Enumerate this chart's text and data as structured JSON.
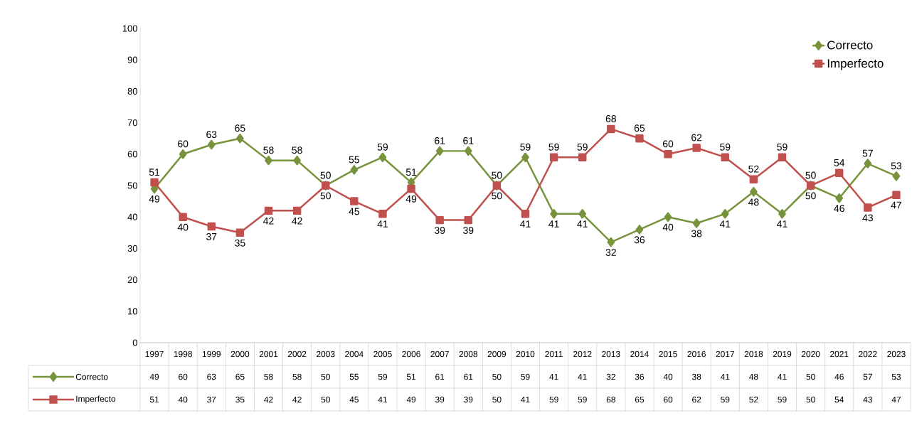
{
  "chart_data": {
    "type": "line",
    "categories": [
      "1997",
      "1998",
      "1999",
      "2000",
      "2001",
      "2002",
      "2003",
      "2004",
      "2005",
      "2006",
      "2007",
      "2008",
      "2009",
      "2010",
      "2011",
      "2012",
      "2013",
      "2014",
      "2015",
      "2016",
      "2017",
      "2018",
      "2019",
      "2020",
      "2021",
      "2022",
      "2023"
    ],
    "series": [
      {
        "name": "Correcto",
        "color": "#77933c",
        "marker": "diamond",
        "values": [
          49,
          60,
          63,
          65,
          58,
          58,
          50,
          55,
          59,
          51,
          61,
          61,
          50,
          59,
          41,
          41,
          32,
          36,
          40,
          38,
          41,
          48,
          41,
          50,
          46,
          57,
          53
        ],
        "value_labels": [
          "49",
          "60",
          "63",
          "65",
          "58",
          "58",
          "50",
          "55",
          "59",
          "51",
          "61",
          "61",
          "50",
          "59",
          "41",
          "41",
          "32",
          "36",
          "40",
          "38",
          "41",
          "48",
          "41",
          "50",
          "46",
          "57",
          "53"
        ]
      },
      {
        "name": "Imperfecto",
        "color": "#c0504d",
        "marker": "square",
        "values": [
          51,
          40,
          37,
          35,
          42,
          42,
          50,
          45,
          41,
          49,
          39,
          39,
          50,
          41,
          59,
          59,
          68,
          65,
          60,
          62,
          59,
          52,
          59,
          50,
          54,
          43,
          47
        ],
        "value_labels": [
          "51",
          "40",
          "37",
          "35",
          "42",
          "42",
          "50",
          "45",
          "41",
          "49",
          "39",
          "39",
          "50",
          "41",
          "59",
          "59",
          "68",
          "65",
          "60",
          "62",
          "59",
          "52",
          "59",
          "50",
          "54",
          "43",
          "47"
        ]
      }
    ],
    "ylim": [
      0,
      100
    ],
    "yticks": [
      0,
      10,
      20,
      30,
      40,
      50,
      60,
      70,
      80,
      90,
      100
    ],
    "legend": "top right",
    "data_labels": true
  }
}
